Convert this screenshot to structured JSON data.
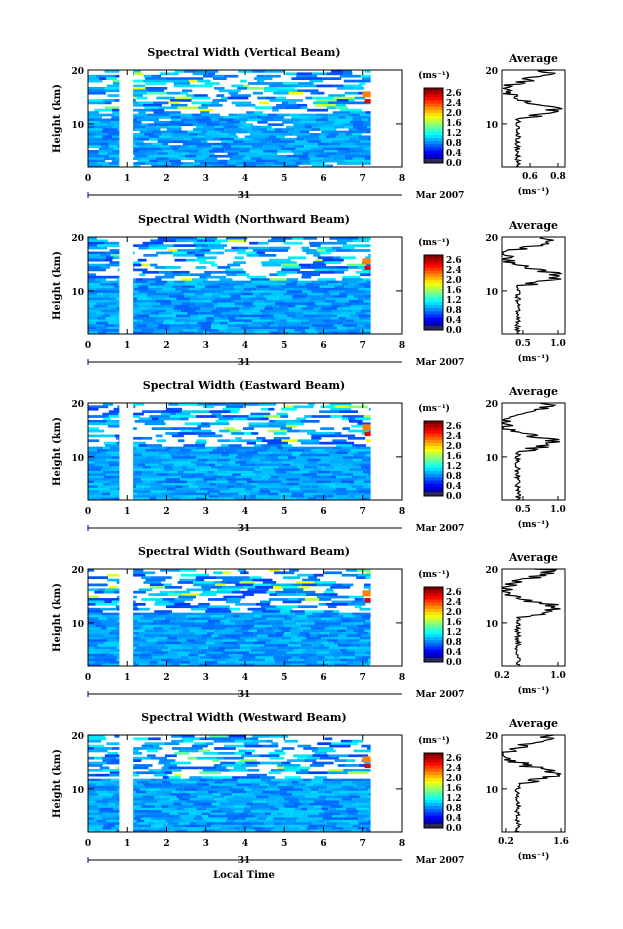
{
  "figure": {
    "xlabel": "Local Time",
    "date_day": "31",
    "date_label": "Mar 2007",
    "x_ticks": [
      "0",
      "1",
      "2",
      "3",
      "4",
      "5",
      "6",
      "7",
      "8"
    ],
    "y_label": "Height (km)",
    "y_ticks": [
      "20",
      "10"
    ],
    "unit_label": "(ms⁻¹)",
    "colorbar_ticks": [
      "2.6",
      "2.4",
      "2.0",
      "1.6",
      "1.2",
      "0.8",
      "0.4",
      "0.0"
    ],
    "average_title": "Average",
    "average_unit": "(ms⁻¹)"
  },
  "chart_data": [
    {
      "type": "heatmap",
      "title": "Spectral Width (Vertical Beam)",
      "xlim": [
        0,
        8
      ],
      "ylim": [
        2,
        20
      ],
      "data_x_end": 7.2,
      "gap": [
        0.8,
        1.15
      ],
      "avg_ticks": [
        "0.6",
        "0.8"
      ],
      "avg_x": [
        0.4,
        0.85
      ]
    },
    {
      "type": "heatmap",
      "title": "Spectral Width (Northward Beam)",
      "xlim": [
        0,
        8
      ],
      "ylim": [
        2,
        20
      ],
      "data_x_end": 7.2,
      "gap": [
        0.8,
        1.15
      ],
      "avg_ticks": [
        "0.5",
        "1.0"
      ],
      "avg_x": [
        0.2,
        1.1
      ]
    },
    {
      "type": "heatmap",
      "title": "Spectral Width (Eastward Beam)",
      "xlim": [
        0,
        8
      ],
      "ylim": [
        2,
        20
      ],
      "data_x_end": 7.2,
      "gap": [
        0.8,
        1.15
      ],
      "avg_ticks": [
        "0.5",
        "1.0"
      ],
      "avg_x": [
        0.2,
        1.1
      ]
    },
    {
      "type": "heatmap",
      "title": "Spectral Width (Southward Beam)",
      "xlim": [
        0,
        8
      ],
      "ylim": [
        2,
        20
      ],
      "data_x_end": 7.2,
      "gap": [
        0.8,
        1.15
      ],
      "avg_ticks": [
        "0.2",
        "1.0"
      ],
      "avg_x": [
        0.2,
        1.1
      ]
    },
    {
      "type": "heatmap",
      "title": "Spectral Width (Westward Beam)",
      "xlim": [
        0,
        8
      ],
      "ylim": [
        2,
        20
      ],
      "data_x_end": 7.2,
      "gap": [
        0.8,
        1.15
      ],
      "avg_ticks": [
        "0.2",
        "1.6"
      ],
      "avg_x": [
        0.1,
        1.7
      ]
    }
  ]
}
